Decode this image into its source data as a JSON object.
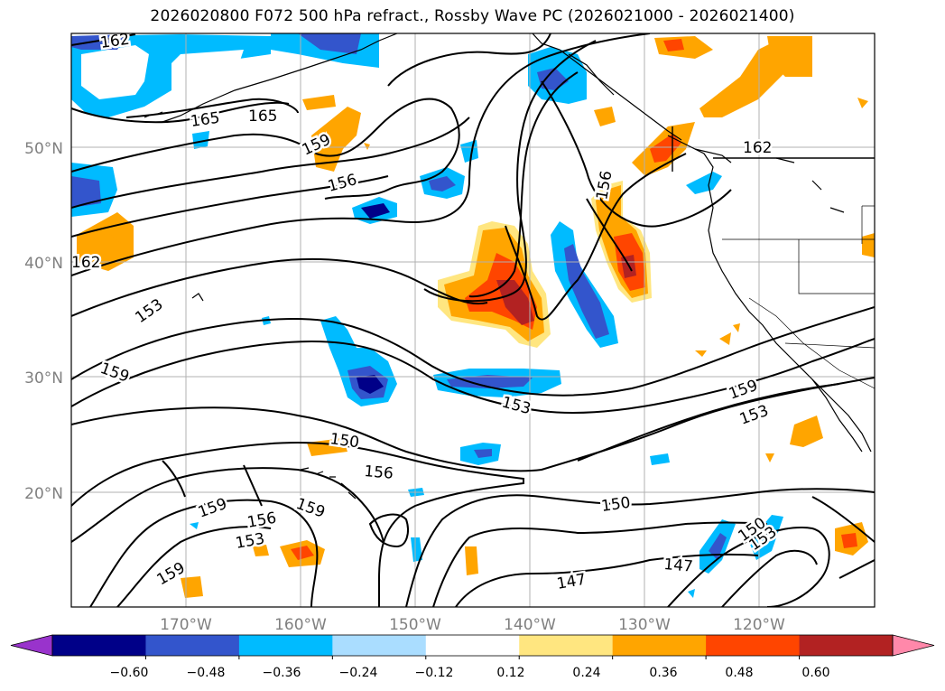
{
  "title": "2026020800 F072 500 hPa refract., Rossby Wave PC (2026021000 - 2026021400)",
  "map": {
    "lon_ticks": [
      "170°W",
      "160°W",
      "150°W",
      "140°W",
      "130°W",
      "120°W"
    ],
    "lat_ticks": [
      "50°N",
      "40°N",
      "30°N",
      "20°N"
    ],
    "contour_labels": [
      "162",
      "165",
      "165",
      "159",
      "156",
      "156",
      "162",
      "162",
      "153",
      "159",
      "153",
      "150",
      "156",
      "159",
      "159",
      "156",
      "153",
      "159",
      "150",
      "147",
      "150",
      "153",
      "159",
      "153"
    ]
  },
  "colorbar": {
    "ticks": [
      "−0.60",
      "−0.48",
      "−0.36",
      "−0.24",
      "−0.12",
      "0.12",
      "0.24",
      "0.36",
      "0.48",
      "0.60"
    ],
    "colors": [
      "#9933cc",
      "#000088",
      "#3355cc",
      "#00bbff",
      "#aaddff",
      "#ffffff",
      "#ffe680",
      "#ffa500",
      "#ff4500",
      "#b22222",
      "#ff88aa"
    ]
  }
}
